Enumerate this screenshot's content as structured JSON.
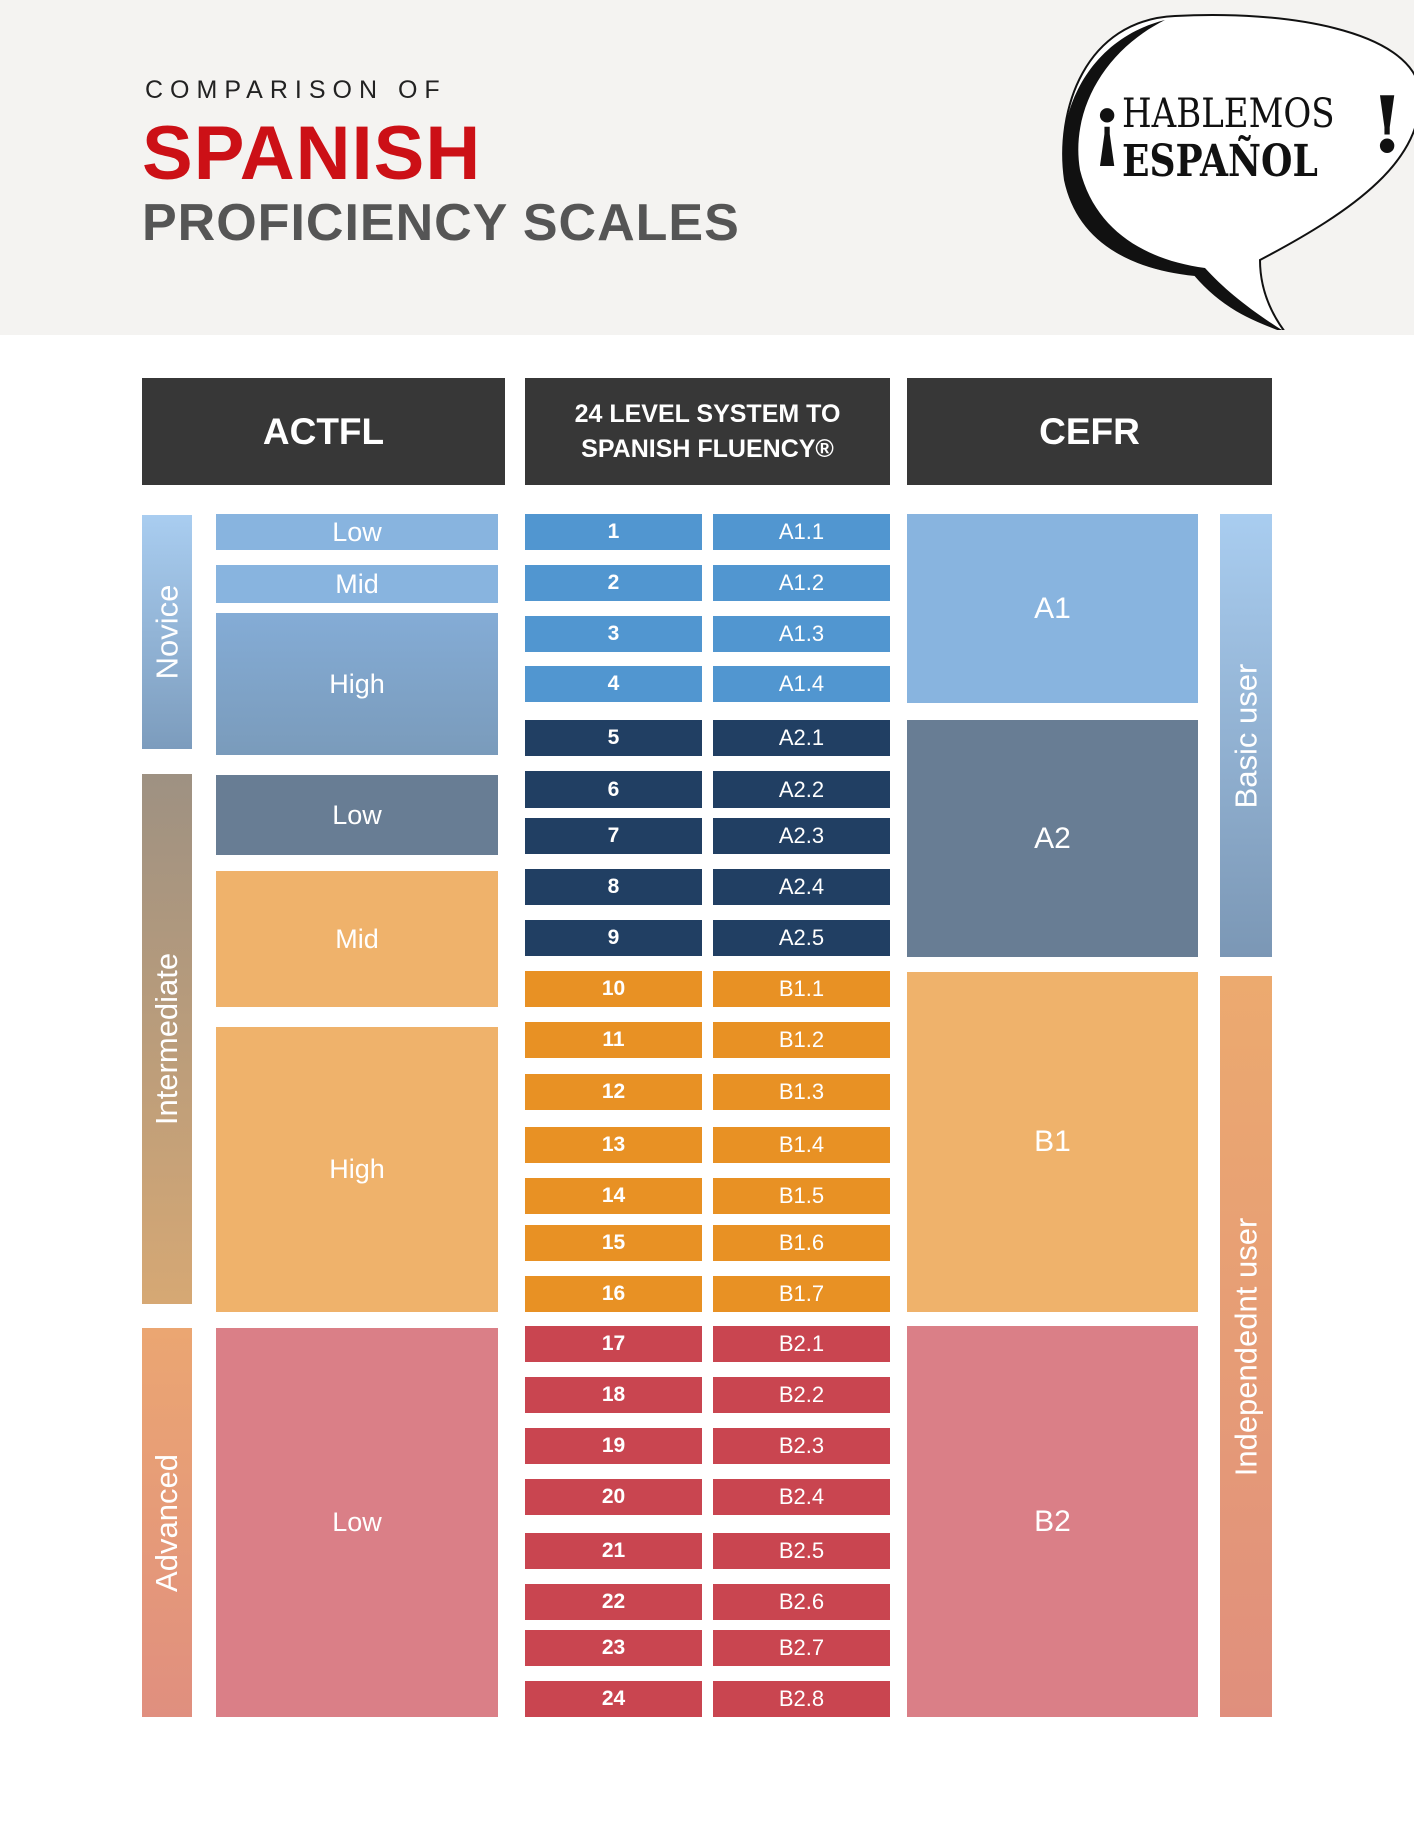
{
  "header": {
    "kicker": "COMPARISON OF",
    "title": "SPANISH",
    "subtitle": "PROFICIENCY SCALES"
  },
  "logo": {
    "line1": "HABLEMOS",
    "line2": "ESPAÑOL",
    "open_mark": "¡",
    "close_mark": "!"
  },
  "columns": {
    "actfl": "ACTFL",
    "system_line1": "24 LEVEL SYSTEM TO",
    "system_line2": "SPANISH FLUENCY®",
    "cefr": "CEFR"
  },
  "actfl_groups": [
    {
      "label": "Novice",
      "from": "#a9cdf0",
      "to": "#7c9cbd"
    },
    {
      "label": "Intermediate",
      "from": "#9e9182",
      "to": "#d6a874"
    },
    {
      "label": "Advanced",
      "from": "#eba672",
      "to": "#e08f7f"
    }
  ],
  "actfl_levels": [
    {
      "label": "Low",
      "color": "#88b4df"
    },
    {
      "label": "Mid",
      "color": "#88b4df"
    },
    {
      "label": "High",
      "color": "#84acd6",
      "to": "#7a9bbb"
    },
    {
      "label": "Low",
      "color": "#687d94"
    },
    {
      "label": "Mid",
      "color": "#efb26b"
    },
    {
      "label": "High",
      "color": "#efb26b"
    },
    {
      "label": "Low",
      "color": "#da7f87"
    }
  ],
  "levels": [
    {
      "n": "1",
      "code": "A1.1",
      "color": "#5196d0"
    },
    {
      "n": "2",
      "code": "A1.2",
      "color": "#5196d0"
    },
    {
      "n": "3",
      "code": "A1.3",
      "color": "#5196d0"
    },
    {
      "n": "4",
      "code": "A1.4",
      "color": "#5196d0"
    },
    {
      "n": "5",
      "code": "A2.1",
      "color": "#213f63"
    },
    {
      "n": "6",
      "code": "A2.2",
      "color": "#213f63"
    },
    {
      "n": "7",
      "code": "A2.3",
      "color": "#213f63"
    },
    {
      "n": "8",
      "code": "A2.4",
      "color": "#213f63"
    },
    {
      "n": "9",
      "code": "A2.5",
      "color": "#213f63"
    },
    {
      "n": "10",
      "code": "B1.1",
      "color": "#e89124"
    },
    {
      "n": "11",
      "code": "B1.2",
      "color": "#e89124"
    },
    {
      "n": "12",
      "code": "B1.3",
      "color": "#e89124"
    },
    {
      "n": "13",
      "code": "B1.4",
      "color": "#e89124"
    },
    {
      "n": "14",
      "code": "B1.5",
      "color": "#e89124"
    },
    {
      "n": "15",
      "code": "B1.6",
      "color": "#e89124"
    },
    {
      "n": "16",
      "code": "B1.7",
      "color": "#e89124"
    },
    {
      "n": "17",
      "code": "B2.1",
      "color": "#c94550"
    },
    {
      "n": "18",
      "code": "B2.2",
      "color": "#c94550"
    },
    {
      "n": "19",
      "code": "B2.3",
      "color": "#c94550"
    },
    {
      "n": "20",
      "code": "B2.4",
      "color": "#c94550"
    },
    {
      "n": "21",
      "code": "B2.5",
      "color": "#c94550"
    },
    {
      "n": "22",
      "code": "B2.6",
      "color": "#c94550"
    },
    {
      "n": "23",
      "code": "B2.7",
      "color": "#c94550"
    },
    {
      "n": "24",
      "code": "B2.8",
      "color": "#c94550"
    }
  ],
  "cefr_levels": [
    {
      "label": "A1",
      "color": "#88b4df"
    },
    {
      "label": "A2",
      "color": "#687d94"
    },
    {
      "label": "B1",
      "color": "#efb26b"
    },
    {
      "label": "B2",
      "color": "#da7f87"
    }
  ],
  "user_groups": [
    {
      "label": "Basic user",
      "from": "#a9cdf0",
      "to": "#7b97b5"
    },
    {
      "label": "Independednt user",
      "from": "#ecaa6f",
      "to": "#e08f7d"
    }
  ]
}
